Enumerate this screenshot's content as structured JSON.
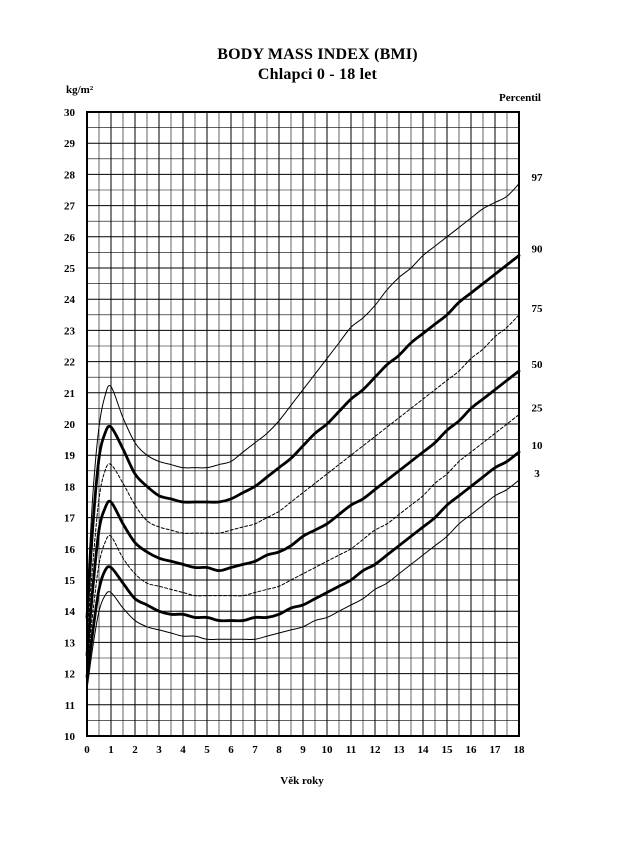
{
  "chart_data": {
    "type": "line",
    "title": "BODY MASS INDEX (BMI)",
    "subtitle": "Chlapci 0 - 18 let",
    "xlabel": "Věk roky",
    "ylabel": "kg/m²",
    "legend_title": "Percentil",
    "xlim": [
      0,
      18
    ],
    "ylim": [
      10,
      30
    ],
    "grid": true,
    "x_ticks": [
      "0",
      "1",
      "2",
      "3",
      "4",
      "5",
      "6",
      "7",
      "8",
      "9",
      "10",
      "11",
      "12",
      "13",
      "14",
      "15",
      "16",
      "17",
      "18"
    ],
    "y_ticks": [
      "10",
      "11",
      "12",
      "13",
      "14",
      "15",
      "16",
      "17",
      "18",
      "19",
      "20",
      "21",
      "22",
      "23",
      "24",
      "25",
      "26",
      "27",
      "28",
      "29",
      "30"
    ],
    "x": [
      0,
      0.25,
      0.5,
      0.75,
      1,
      1.5,
      2,
      2.5,
      3,
      3.5,
      4,
      4.5,
      5,
      5.5,
      6,
      6.5,
      7,
      7.5,
      8,
      8.5,
      9,
      9.5,
      10,
      10.5,
      11,
      11.5,
      12,
      12.5,
      13,
      13.5,
      14,
      14.5,
      15,
      15.5,
      16,
      16.5,
      17,
      17.5,
      18
    ],
    "series": [
      {
        "name": "97",
        "style": "thin",
        "values": [
          14.4,
          17.8,
          19.9,
          20.9,
          21.2,
          20.2,
          19.4,
          19.0,
          18.8,
          18.7,
          18.6,
          18.6,
          18.6,
          18.7,
          18.8,
          19.1,
          19.4,
          19.7,
          20.1,
          20.6,
          21.1,
          21.6,
          22.1,
          22.6,
          23.1,
          23.4,
          23.8,
          24.3,
          24.7,
          25.0,
          25.4,
          25.7,
          26.0,
          26.3,
          26.6,
          26.9,
          27.1,
          27.3,
          27.7
        ]
      },
      {
        "name": "90",
        "style": "bold",
        "values": [
          13.8,
          16.8,
          18.9,
          19.7,
          19.9,
          19.2,
          18.4,
          18.0,
          17.7,
          17.6,
          17.5,
          17.5,
          17.5,
          17.5,
          17.6,
          17.8,
          18.0,
          18.3,
          18.6,
          18.9,
          19.3,
          19.7,
          20.0,
          20.4,
          20.8,
          21.1,
          21.5,
          21.9,
          22.2,
          22.6,
          22.9,
          23.2,
          23.5,
          23.9,
          24.2,
          24.5,
          24.8,
          25.1,
          25.4
        ]
      },
      {
        "name": "75",
        "style": "dashed",
        "values": [
          13.2,
          15.6,
          17.6,
          18.5,
          18.7,
          18.1,
          17.4,
          16.9,
          16.7,
          16.6,
          16.5,
          16.5,
          16.5,
          16.5,
          16.6,
          16.7,
          16.8,
          17.0,
          17.2,
          17.5,
          17.8,
          18.1,
          18.4,
          18.7,
          19.0,
          19.3,
          19.6,
          19.9,
          20.2,
          20.5,
          20.8,
          21.1,
          21.4,
          21.7,
          22.1,
          22.4,
          22.8,
          23.1,
          23.5
        ]
      },
      {
        "name": "50",
        "style": "bold",
        "values": [
          12.6,
          14.8,
          16.6,
          17.3,
          17.5,
          16.8,
          16.2,
          15.9,
          15.7,
          15.6,
          15.5,
          15.4,
          15.4,
          15.3,
          15.4,
          15.5,
          15.6,
          15.8,
          15.9,
          16.1,
          16.4,
          16.6,
          16.8,
          17.1,
          17.4,
          17.6,
          17.9,
          18.2,
          18.5,
          18.8,
          19.1,
          19.4,
          19.8,
          20.1,
          20.5,
          20.8,
          21.1,
          21.4,
          21.7
        ]
      },
      {
        "name": "25",
        "style": "dashed",
        "values": [
          12.2,
          14.0,
          15.5,
          16.2,
          16.4,
          15.7,
          15.2,
          14.9,
          14.8,
          14.7,
          14.6,
          14.5,
          14.5,
          14.5,
          14.5,
          14.5,
          14.6,
          14.7,
          14.8,
          15.0,
          15.2,
          15.4,
          15.6,
          15.8,
          16.0,
          16.3,
          16.6,
          16.8,
          17.1,
          17.4,
          17.7,
          18.1,
          18.4,
          18.8,
          19.1,
          19.4,
          19.7,
          20.0,
          20.3
        ]
      },
      {
        "name": "10",
        "style": "bold",
        "values": [
          11.9,
          13.4,
          14.7,
          15.3,
          15.4,
          14.9,
          14.4,
          14.2,
          14.0,
          13.9,
          13.9,
          13.8,
          13.8,
          13.7,
          13.7,
          13.7,
          13.8,
          13.8,
          13.9,
          14.1,
          14.2,
          14.4,
          14.6,
          14.8,
          15.0,
          15.3,
          15.5,
          15.8,
          16.1,
          16.4,
          16.7,
          17.0,
          17.4,
          17.7,
          18.0,
          18.3,
          18.6,
          18.8,
          19.1
        ]
      },
      {
        "name": "3",
        "style": "thin",
        "values": [
          11.5,
          12.9,
          14.0,
          14.5,
          14.6,
          14.1,
          13.7,
          13.5,
          13.4,
          13.3,
          13.2,
          13.2,
          13.1,
          13.1,
          13.1,
          13.1,
          13.1,
          13.2,
          13.3,
          13.4,
          13.5,
          13.7,
          13.8,
          14.0,
          14.2,
          14.4,
          14.7,
          14.9,
          15.2,
          15.5,
          15.8,
          16.1,
          16.4,
          16.8,
          17.1,
          17.4,
          17.7,
          17.9,
          18.2
        ]
      }
    ]
  }
}
